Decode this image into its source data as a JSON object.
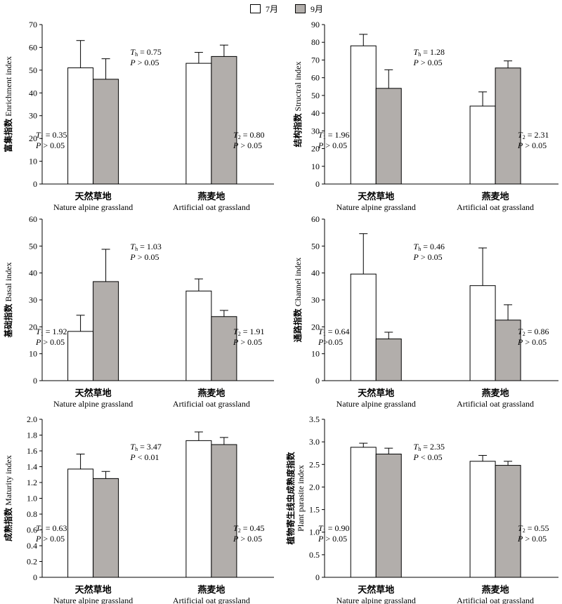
{
  "legend": {
    "july_label": "7月",
    "sept_label": "9月",
    "july_color": "#ffffff",
    "sept_color": "#b2aeab"
  },
  "chart_data": [
    {
      "type": "bar",
      "ylabel_cn": "富集指数",
      "ylabel_en": "Enrichment index",
      "ylim": [
        0,
        70
      ],
      "yticks": [
        "0",
        "10",
        "20",
        "30",
        "40",
        "50",
        "60",
        "70"
      ],
      "categories": [
        {
          "cn": "天然草地",
          "en": "Nature alpine grassland"
        },
        {
          "cn": "燕麦地",
          "en": "Artificial oat grassland"
        }
      ],
      "series": [
        {
          "name": "7月",
          "values": [
            51,
            53
          ],
          "errors": [
            12,
            4.8
          ]
        },
        {
          "name": "9月",
          "values": [
            46,
            56
          ],
          "errors": [
            9,
            5
          ]
        }
      ],
      "ann_th": {
        "sym": "T",
        "sub": "h",
        "val": " = 0.75",
        "p": "P > 0.05"
      },
      "ann_t1": {
        "sym": "T",
        "sub": "1",
        "val": " = 0.35",
        "p": "P > 0.05"
      },
      "ann_t2": {
        "sym": "T",
        "sub": "2",
        "val": " = 0.80",
        "p": "P > 0.05"
      }
    },
    {
      "type": "bar",
      "ylabel_cn": "结构指数",
      "ylabel_en": "Structral index",
      "ylim": [
        0,
        90
      ],
      "yticks": [
        "0",
        "10",
        "20",
        "30",
        "40",
        "50",
        "60",
        "70",
        "80",
        "90"
      ],
      "categories": [
        {
          "cn": "天然草地",
          "en": "Nature alpine grassland"
        },
        {
          "cn": "燕麦地",
          "en": "Artificial oat grassland"
        }
      ],
      "series": [
        {
          "name": "7月",
          "values": [
            78,
            44
          ],
          "errors": [
            6.5,
            8
          ]
        },
        {
          "name": "9月",
          "values": [
            54,
            65.5
          ],
          "errors": [
            10.5,
            4
          ]
        }
      ],
      "ann_th": {
        "sym": "T",
        "sub": "h",
        "val": " = 1.28",
        "p": "P > 0.05"
      },
      "ann_t1": {
        "sym": "T",
        "sub": "1",
        "val": " = 1.96",
        "p": "P > 0.05"
      },
      "ann_t2": {
        "sym": "T",
        "sub": "2",
        "val": " = 2.31",
        "p": "P > 0.05"
      }
    },
    {
      "type": "bar",
      "ylabel_cn": "基础指数",
      "ylabel_en": "Basal index",
      "ylim": [
        0,
        60
      ],
      "yticks": [
        "0",
        "10",
        "20",
        "30",
        "40",
        "50",
        "60"
      ],
      "categories": [
        {
          "cn": "天然草地",
          "en": "Nature alpine grassland"
        },
        {
          "cn": "燕麦地",
          "en": "Artificial oat grassland"
        }
      ],
      "series": [
        {
          "name": "7月",
          "values": [
            18.3,
            33.3
          ],
          "errors": [
            6,
            4.5
          ]
        },
        {
          "name": "9月",
          "values": [
            36.8,
            23.8
          ],
          "errors": [
            12,
            2.3
          ]
        }
      ],
      "ann_th": {
        "sym": "T",
        "sub": "h",
        "val": " = 1.03",
        "p": "P > 0.05"
      },
      "ann_t1": {
        "sym": "T",
        "sub": "1",
        "val": " = 1.92",
        "p": "P > 0.05"
      },
      "ann_t2": {
        "sym": "T",
        "sub": "2",
        "val": " = 1.91",
        "p": "P > 0.05"
      }
    },
    {
      "type": "bar",
      "ylabel_cn": "通路指数",
      "ylabel_en": "Channel index",
      "ylim": [
        0,
        60
      ],
      "yticks": [
        "0",
        "10",
        "20",
        "30",
        "40",
        "50",
        "60"
      ],
      "categories": [
        {
          "cn": "天然草地",
          "en": "Nature alpine grassland"
        },
        {
          "cn": "燕麦地",
          "en": "Artificial oat grassland"
        }
      ],
      "series": [
        {
          "name": "7月",
          "values": [
            39.6,
            35.3
          ],
          "errors": [
            15,
            14
          ]
        },
        {
          "name": "9月",
          "values": [
            15.5,
            22.5
          ],
          "errors": [
            2.5,
            5.7
          ]
        }
      ],
      "ann_th": {
        "sym": "T",
        "sub": "h",
        "val": " = 0.46",
        "p": "P > 0.05"
      },
      "ann_t1": {
        "sym": "T",
        "sub": "1",
        "val": " = 0.64",
        "p": "P>0.05"
      },
      "ann_t2": {
        "sym": "T",
        "sub": "2",
        "val": " = 0.86",
        "p": "P > 0.05"
      }
    },
    {
      "type": "bar",
      "ylabel_cn": "成熟指数",
      "ylabel_en": "Maturity index",
      "ylim": [
        0,
        2.0
      ],
      "yticks": [
        "0",
        "0.2",
        "0.4",
        "0.6",
        "0.8",
        "1.0",
        "1.2",
        "1.4",
        "1.6",
        "1.8",
        "2.0"
      ],
      "categories": [
        {
          "cn": "天然草地",
          "en": "Nature alpine grassland"
        },
        {
          "cn": "燕麦地",
          "en": "Artificial oat grassland"
        }
      ],
      "series": [
        {
          "name": "7月",
          "values": [
            1.37,
            1.73
          ],
          "errors": [
            0.19,
            0.11
          ]
        },
        {
          "name": "9月",
          "values": [
            1.25,
            1.68
          ],
          "errors": [
            0.09,
            0.09
          ]
        }
      ],
      "ann_th": {
        "sym": "T",
        "sub": "h",
        "val": " = 3.47",
        "p": "P < 0.01"
      },
      "ann_t1": {
        "sym": "T",
        "sub": "1",
        "val": " = 0.63",
        "p": "P > 0.05"
      },
      "ann_t2": {
        "sym": "T",
        "sub": "2",
        "val": " = 0.45",
        "p": "P > 0.05"
      }
    },
    {
      "type": "bar",
      "ylabel_cn": "植物寄生线虫成熟度指数",
      "ylabel_en": "Plant parasite index",
      "ylim": [
        0,
        3.5
      ],
      "yticks": [
        "0",
        "0.5",
        "1.0",
        "1.5",
        "2.0",
        "2.5",
        "3.0",
        "3.5"
      ],
      "categories": [
        {
          "cn": "天然草地",
          "en": "Nature alpine grassland"
        },
        {
          "cn": "燕麦地",
          "en": "Artificial oat grassland"
        }
      ],
      "series": [
        {
          "name": "7月",
          "values": [
            2.88,
            2.57
          ],
          "errors": [
            0.09,
            0.13
          ]
        },
        {
          "name": "9月",
          "values": [
            2.73,
            2.48
          ],
          "errors": [
            0.13,
            0.09
          ]
        }
      ],
      "ann_th": {
        "sym": "T",
        "sub": "h",
        "val": " = 2.35",
        "p": "P < 0.05"
      },
      "ann_t1": {
        "sym": "T",
        "sub": "1",
        "val": " = 0.90",
        "p": "P > 0.05"
      },
      "ann_t2": {
        "sym": "T",
        "sub": "2",
        "val": " = 0.55",
        "p": "P > 0.05"
      }
    }
  ]
}
